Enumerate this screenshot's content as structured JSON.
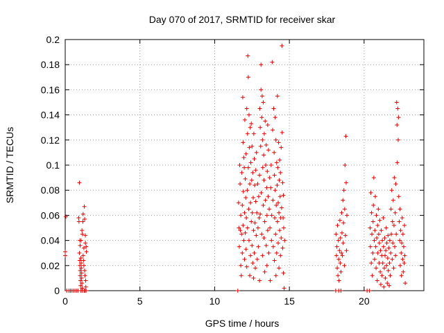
{
  "chart_data": {
    "type": "scatter",
    "title": "Day 070 of 2017, SRMTID for receiver skar",
    "xlabel": "GPS time / hours",
    "ylabel": "SRMTID / TECUs",
    "xlim": [
      0,
      24
    ],
    "ylim": [
      0,
      0.2
    ],
    "xticks": [
      0,
      5,
      10,
      15,
      20
    ],
    "yticks": [
      0,
      0.02,
      0.04,
      0.06,
      0.08,
      0.1,
      0.12,
      0.14,
      0.16,
      0.18,
      0.2
    ],
    "xtick_labels": [
      "0",
      "5",
      "10",
      "15",
      "20"
    ],
    "ytick_labels": [
      "0",
      "0.02",
      "0.04",
      "0.06",
      "0.08",
      "0.1",
      "0.12",
      "0.14",
      "0.16",
      "0.18",
      "0.2"
    ],
    "grid": true,
    "marker": "+",
    "color": "#e00000",
    "points": [
      [
        0.0,
        0.031
      ],
      [
        0.0,
        0.028
      ],
      [
        0.05,
        0.059
      ],
      [
        0.1,
        0.0
      ],
      [
        0.25,
        0.0
      ],
      [
        0.35,
        0.0
      ],
      [
        0.45,
        0.0
      ],
      [
        0.55,
        0.0
      ],
      [
        0.65,
        0.0
      ],
      [
        0.75,
        0.0
      ],
      [
        0.85,
        0.0
      ],
      [
        0.9,
        0.058
      ],
      [
        0.92,
        0.055
      ],
      [
        0.95,
        0.086
      ],
      [
        0.95,
        0.03
      ],
      [
        0.97,
        0.024
      ],
      [
        0.98,
        0.02
      ],
      [
        1.0,
        0.016
      ],
      [
        1.0,
        0.012
      ],
      [
        1.02,
        0.008
      ],
      [
        1.03,
        0.004
      ],
      [
        1.05,
        0.0
      ],
      [
        1.05,
        0.026
      ],
      [
        1.07,
        0.022
      ],
      [
        1.08,
        0.018
      ],
      [
        1.1,
        0.014
      ],
      [
        1.1,
        0.01
      ],
      [
        1.12,
        0.006
      ],
      [
        1.13,
        0.002
      ],
      [
        1.15,
        0.0
      ],
      [
        1.15,
        0.045
      ],
      [
        1.18,
        0.055
      ],
      [
        1.2,
        0.061
      ],
      [
        1.2,
        0.028
      ],
      [
        1.22,
        0.024
      ],
      [
        1.25,
        0.034
      ],
      [
        1.25,
        0.02
      ],
      [
        1.28,
        0.067
      ],
      [
        1.3,
        0.057
      ],
      [
        1.3,
        0.016
      ],
      [
        1.32,
        0.012
      ],
      [
        1.35,
        0.044
      ],
      [
        1.35,
        0.038
      ],
      [
        1.37,
        0.008
      ],
      [
        1.38,
        0.003
      ],
      [
        1.4,
        0.035
      ],
      [
        1.4,
        0.0
      ],
      [
        1.42,
        0.031
      ],
      [
        1.0,
        0.036
      ],
      [
        1.06,
        0.04
      ],
      [
        1.12,
        0.048
      ],
      [
        0.98,
        0.04
      ],
      [
        1.26,
        0.0
      ],
      [
        1.32,
        0.0
      ],
      [
        11.55,
        0.0
      ],
      [
        11.6,
        0.07
      ],
      [
        11.62,
        0.05
      ],
      [
        11.65,
        0.035
      ],
      [
        11.68,
        0.1
      ],
      [
        11.7,
        0.085
      ],
      [
        11.72,
        0.048
      ],
      [
        11.75,
        0.06
      ],
      [
        11.75,
        0.02
      ],
      [
        11.78,
        0.012
      ],
      [
        11.8,
        0.045
      ],
      [
        11.82,
        0.094
      ],
      [
        11.85,
        0.068
      ],
      [
        11.85,
        0.03
      ],
      [
        11.88,
        0.154
      ],
      [
        11.9,
        0.118
      ],
      [
        11.9,
        0.052
      ],
      [
        11.92,
        0.079
      ],
      [
        11.95,
        0.04
      ],
      [
        11.95,
        0.106
      ],
      [
        11.98,
        0.098
      ],
      [
        12.0,
        0.062
      ],
      [
        12.0,
        0.025
      ],
      [
        12.02,
        0.136
      ],
      [
        12.05,
        0.089
      ],
      [
        12.05,
        0.046
      ],
      [
        12.08,
        0.074
      ],
      [
        12.1,
        0.109
      ],
      [
        12.1,
        0.033
      ],
      [
        12.12,
        0.058
      ],
      [
        12.15,
        0.145
      ],
      [
        12.15,
        0.019
      ],
      [
        12.18,
        0.08
      ],
      [
        12.2,
        0.125
      ],
      [
        12.2,
        0.05
      ],
      [
        12.22,
        0.187
      ],
      [
        12.25,
        0.17
      ],
      [
        12.25,
        0.098
      ],
      [
        12.28,
        0.065
      ],
      [
        12.3,
        0.04
      ],
      [
        12.3,
        0.14
      ],
      [
        12.32,
        0.114
      ],
      [
        12.35,
        0.085
      ],
      [
        12.35,
        0.012
      ],
      [
        12.38,
        0.13
      ],
      [
        12.4,
        0.07
      ],
      [
        12.4,
        0.028
      ],
      [
        12.42,
        0.102
      ],
      [
        12.45,
        0.055
      ],
      [
        12.45,
        0.133
      ],
      [
        12.48,
        0.088
      ],
      [
        12.5,
        0.036
      ],
      [
        12.5,
        0.115
      ],
      [
        12.52,
        0.062
      ],
      [
        12.55,
        0.022
      ],
      [
        12.55,
        0.094
      ],
      [
        12.58,
        0.074
      ],
      [
        12.6,
        0.048
      ],
      [
        12.6,
        0.01
      ],
      [
        12.62,
        0.125
      ],
      [
        12.65,
        0.105
      ],
      [
        12.65,
        0.03
      ],
      [
        12.68,
        0.084
      ],
      [
        12.7,
        0.054
      ],
      [
        12.72,
        0.018
      ],
      [
        12.75,
        0.096
      ],
      [
        12.75,
        0.071
      ],
      [
        12.78,
        0.044
      ],
      [
        12.8,
        0.11
      ],
      [
        12.82,
        0.062
      ],
      [
        12.85,
        0.025
      ],
      [
        12.88,
        0.085
      ],
      [
        12.9,
        0.05
      ],
      [
        12.92,
        0.035
      ],
      [
        12.95,
        0.075
      ],
      [
        12.98,
        0.058
      ],
      [
        13.0,
        0.008
      ],
      [
        13.0,
        0.092
      ],
      [
        13.02,
        0.145
      ],
      [
        13.05,
        0.13
      ],
      [
        13.05,
        0.061
      ],
      [
        13.08,
        0.115
      ],
      [
        13.1,
        0.18
      ],
      [
        13.1,
        0.16
      ],
      [
        13.12,
        0.078
      ],
      [
        13.15,
        0.138
      ],
      [
        13.15,
        0.045
      ],
      [
        13.18,
        0.155
      ],
      [
        13.2,
        0.12
      ],
      [
        13.2,
        0.028
      ],
      [
        13.22,
        0.098
      ],
      [
        13.25,
        0.068
      ],
      [
        13.25,
        0.15
      ],
      [
        13.28,
        0.108
      ],
      [
        13.3,
        0.042
      ],
      [
        13.3,
        0.088
      ],
      [
        13.32,
        0.125
      ],
      [
        13.35,
        0.055
      ],
      [
        13.35,
        0.015
      ],
      [
        13.38,
        0.135
      ],
      [
        13.4,
        0.072
      ],
      [
        13.42,
        0.1
      ],
      [
        13.45,
        0.036
      ],
      [
        13.45,
        0.116
      ],
      [
        13.48,
        0.082
      ],
      [
        13.5,
        0.06
      ],
      [
        13.5,
        0.02
      ],
      [
        13.52,
        0.095
      ],
      [
        13.55,
        0.132
      ],
      [
        13.55,
        0.048
      ],
      [
        13.58,
        0.075
      ],
      [
        13.6,
        0.112
      ],
      [
        13.62,
        0.03
      ],
      [
        13.65,
        0.065
      ],
      [
        13.68,
        0.09
      ],
      [
        13.7,
        0.05
      ],
      [
        13.72,
        0.008
      ],
      [
        13.75,
        0.082
      ],
      [
        13.78,
        0.1
      ],
      [
        13.8,
        0.04
      ],
      [
        13.82,
        0.06
      ],
      [
        13.85,
        0.182
      ],
      [
        13.88,
        0.128
      ],
      [
        13.9,
        0.072
      ],
      [
        13.92,
        0.035
      ],
      [
        13.95,
        0.145
      ],
      [
        13.98,
        0.11
      ],
      [
        14.0,
        0.092
      ],
      [
        14.0,
        0.024
      ],
      [
        14.02,
        0.058
      ],
      [
        14.05,
        0.138
      ],
      [
        14.05,
        0.08
      ],
      [
        14.08,
        0.045
      ],
      [
        14.1,
        0.12
      ],
      [
        14.1,
        0.012
      ],
      [
        14.12,
        0.068
      ],
      [
        14.15,
        0.102
      ],
      [
        14.15,
        0.03
      ],
      [
        14.18,
        0.084
      ],
      [
        14.2,
        0.055
      ],
      [
        14.2,
        0.155
      ],
      [
        14.22,
        0.098
      ],
      [
        14.25,
        0.038
      ],
      [
        14.25,
        0.07
      ],
      [
        14.28,
        0.118
      ],
      [
        14.3,
        0.062
      ],
      [
        14.3,
        0.018
      ],
      [
        14.32,
        0.088
      ],
      [
        14.35,
        0.048
      ],
      [
        14.35,
        0.104
      ],
      [
        14.38,
        0.075
      ],
      [
        14.4,
        0.028
      ],
      [
        14.4,
        0.094
      ],
      [
        14.42,
        0.058
      ],
      [
        14.45,
        0.114
      ],
      [
        14.45,
        0.042
      ],
      [
        14.48,
        0.066
      ],
      [
        14.5,
        0.195
      ],
      [
        14.52,
        0.126
      ],
      [
        14.55,
        0.086
      ],
      [
        14.55,
        0.034
      ],
      [
        14.58,
        0.058
      ],
      [
        14.6,
        0.014
      ],
      [
        14.6,
        0.076
      ],
      [
        14.62,
        0.05
      ],
      [
        14.65,
        0.002
      ],
      [
        14.68,
        0.04
      ],
      [
        18.1,
        0.0
      ],
      [
        18.12,
        0.045
      ],
      [
        18.15,
        0.028
      ],
      [
        18.18,
        0.035
      ],
      [
        18.2,
        0.018
      ],
      [
        18.22,
        0.052
      ],
      [
        18.25,
        0.012
      ],
      [
        18.28,
        0.04
      ],
      [
        18.3,
        0.025
      ],
      [
        18.32,
        0.008
      ],
      [
        18.35,
        0.032
      ],
      [
        18.38,
        0.056
      ],
      [
        18.4,
        0.022
      ],
      [
        18.42,
        0.042
      ],
      [
        18.45,
        0.015
      ],
      [
        18.48,
        0.03
      ],
      [
        18.5,
        0.062
      ],
      [
        18.52,
        0.046
      ],
      [
        18.55,
        0.028
      ],
      [
        18.58,
        0.072
      ],
      [
        18.6,
        0.038
      ],
      [
        18.62,
        0.054
      ],
      [
        18.65,
        0.08
      ],
      [
        18.68,
        0.02
      ],
      [
        18.7,
        0.065
      ],
      [
        18.72,
        0.1
      ],
      [
        18.75,
        0.044
      ],
      [
        18.78,
        0.123
      ],
      [
        18.8,
        0.086
      ],
      [
        18.82,
        0.032
      ],
      [
        18.85,
        0.06
      ],
      [
        18.3,
        0.0
      ],
      [
        18.45,
        0.0
      ],
      [
        20.2,
        0.0
      ],
      [
        20.35,
        0.0
      ],
      [
        20.4,
        0.05
      ],
      [
        20.42,
        0.035
      ],
      [
        20.45,
        0.078
      ],
      [
        20.48,
        0.022
      ],
      [
        20.5,
        0.062
      ],
      [
        20.52,
        0.045
      ],
      [
        20.55,
        0.012
      ],
      [
        20.58,
        0.03
      ],
      [
        20.6,
        0.055
      ],
      [
        20.62,
        0.068
      ],
      [
        20.65,
        0.09
      ],
      [
        20.68,
        0.04
      ],
      [
        20.7,
        0.025
      ],
      [
        20.72,
        0.048
      ],
      [
        20.75,
        0.075
      ],
      [
        20.78,
        0.035
      ],
      [
        20.8,
        0.018
      ],
      [
        20.82,
        0.06
      ],
      [
        20.85,
        0.042
      ],
      [
        20.88,
        0.008
      ],
      [
        20.9,
        0.052
      ],
      [
        20.92,
        0.03
      ],
      [
        20.95,
        0.065
      ],
      [
        20.98,
        0.045
      ],
      [
        21.0,
        0.022
      ],
      [
        21.02,
        0.038
      ],
      [
        21.05,
        0.056
      ],
      [
        21.08,
        0.015
      ],
      [
        21.1,
        0.032
      ],
      [
        21.12,
        0.005
      ],
      [
        21.15,
        0.048
      ],
      [
        21.18,
        0.028
      ],
      [
        21.2,
        0.012
      ],
      [
        21.22,
        0.04
      ],
      [
        21.25,
        0.022
      ],
      [
        21.28,
        0.058
      ],
      [
        21.3,
        0.035
      ],
      [
        21.32,
        0.003
      ],
      [
        21.35,
        0.018
      ],
      [
        21.38,
        0.042
      ],
      [
        21.4,
        0.028
      ],
      [
        21.42,
        0.01
      ],
      [
        21.45,
        0.032
      ],
      [
        21.48,
        0.05
      ],
      [
        21.5,
        0.02
      ],
      [
        21.52,
        0.038
      ],
      [
        21.55,
        0.006
      ],
      [
        21.58,
        0.026
      ],
      [
        21.6,
        0.044
      ],
      [
        21.62,
        0.016
      ],
      [
        21.65,
        0.034
      ],
      [
        21.68,
        0.004
      ],
      [
        21.7,
        0.022
      ],
      [
        21.72,
        0.04
      ],
      [
        21.75,
        0.012
      ],
      [
        21.78,
        0.03
      ],
      [
        21.8,
        0.065
      ],
      [
        21.82,
        0.045
      ],
      [
        21.85,
        0.08
      ],
      [
        21.88,
        0.025
      ],
      [
        21.9,
        0.055
      ],
      [
        21.92,
        0.038
      ],
      [
        21.95,
        0.072
      ],
      [
        21.98,
        0.018
      ],
      [
        22.0,
        0.052
      ],
      [
        22.02,
        0.09
      ],
      [
        22.05,
        0.035
      ],
      [
        22.08,
        0.062
      ],
      [
        22.1,
        0.028
      ],
      [
        22.12,
        0.085
      ],
      [
        22.15,
        0.045
      ],
      [
        22.18,
        0.15
      ],
      [
        22.2,
        0.132
      ],
      [
        22.22,
        0.102
      ],
      [
        22.25,
        0.145
      ],
      [
        22.28,
        0.12
      ],
      [
        22.3,
        0.138
      ],
      [
        22.32,
        0.075
      ],
      [
        22.35,
        0.055
      ],
      [
        22.38,
        0.04
      ],
      [
        22.4,
        0.065
      ],
      [
        22.42,
        0.02
      ],
      [
        22.45,
        0.048
      ],
      [
        22.48,
        0.03
      ],
      [
        22.5,
        0.012
      ],
      [
        22.52,
        0.038
      ],
      [
        22.55,
        0.058
      ],
      [
        22.58,
        0.025
      ],
      [
        22.6,
        0.045
      ],
      [
        22.62,
        0.015
      ],
      [
        22.65,
        0.035
      ],
      [
        22.68,
        0.022
      ],
      [
        22.7,
        0.052
      ],
      [
        22.72,
        0.028
      ],
      [
        22.75,
        0.006
      ]
    ]
  }
}
